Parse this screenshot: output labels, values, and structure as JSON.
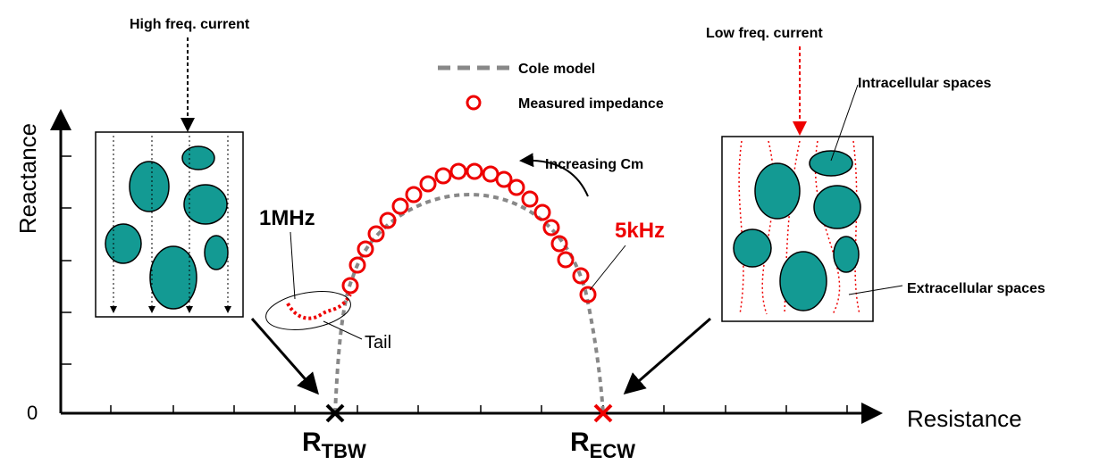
{
  "axes": {
    "y_label": "Reactance",
    "x_label": "Resistance",
    "origin": "0"
  },
  "legend": {
    "cole": "Cole model",
    "measured": "Measured impedance"
  },
  "left_panel": {
    "title": "High freq. current"
  },
  "right_panel": {
    "title": "Low freq. current",
    "intracellular": "Intracellular spaces",
    "extracellular": "Extracellular spaces"
  },
  "annotations": {
    "increasing": "Increasing Cm",
    "high": "1MHz",
    "low": "5kHz",
    "tail": "Tail"
  },
  "markers": {
    "tbw": {
      "main": "R",
      "sub": "TBW"
    },
    "ecw": {
      "main": "R",
      "sub": "ECW"
    }
  }
}
